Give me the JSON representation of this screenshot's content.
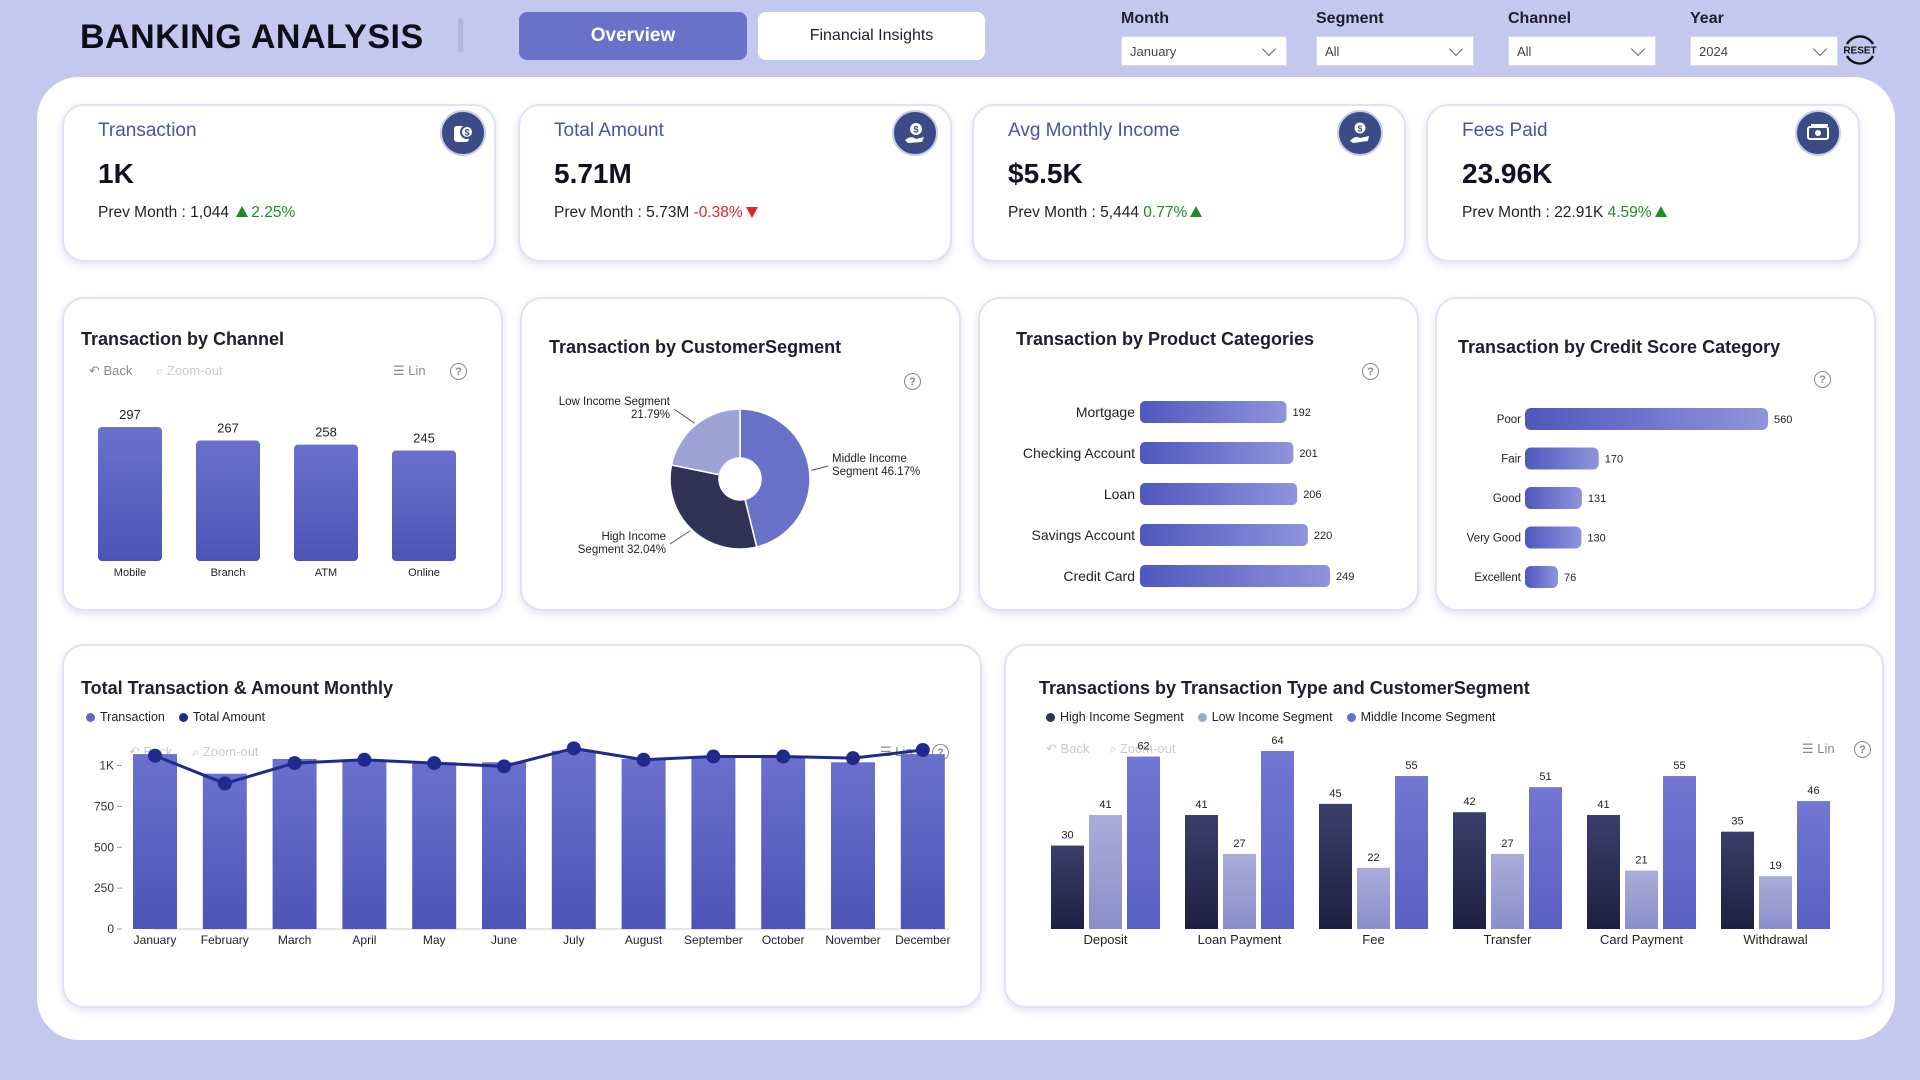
{
  "header": {
    "title": "BANKING ANALYSIS",
    "tabs": [
      {
        "label": "Overview",
        "active": true
      },
      {
        "label": "Financial Insights",
        "active": false
      }
    ],
    "filters": [
      {
        "label": "Month",
        "value": "January"
      },
      {
        "label": "Segment",
        "value": "All"
      },
      {
        "label": "Channel",
        "value": "All"
      },
      {
        "label": "Year",
        "value": "2024"
      }
    ],
    "reset_label": "RESET"
  },
  "kpis": [
    {
      "label": "Transaction",
      "value": "1K",
      "prev_label": "Prev Month : 1,044",
      "change": "2.25%",
      "direction": "up",
      "icon": "money-bag-icon"
    },
    {
      "label": "Total Amount",
      "value": "5.71M",
      "prev_label": "Prev Month : 5.73M",
      "change": "-0.38%",
      "direction": "down",
      "icon": "hand-coin-icon"
    },
    {
      "label": "Avg Monthly Income",
      "value": "$5.5K",
      "prev_label": "Prev Month : 5,444",
      "change": "0.77%",
      "direction": "up",
      "icon": "hand-income-icon"
    },
    {
      "label": "Fees Paid",
      "value": "23.96K",
      "prev_label": "Prev Month : 22.91K",
      "change": "4.59%",
      "direction": "up",
      "icon": "cash-icon"
    }
  ],
  "toolbar": {
    "back": "Back",
    "zoom_out": "Zoom-out",
    "lin": "Lin",
    "help": "?"
  },
  "colors": {
    "accent": "#6a71c9",
    "bar": "#5b61c4",
    "dark": "#2e3356",
    "light": "#9ea3d6",
    "line": "#1f2a8f",
    "up": "#1d8c26",
    "down": "#e0242a"
  },
  "chart_data": [
    {
      "id": "channel",
      "type": "bar",
      "title": "Transaction by Channel",
      "categories": [
        "Mobile",
        "Branch",
        "ATM",
        "Online"
      ],
      "values": [
        297,
        267,
        258,
        245
      ],
      "ylim": [
        0,
        297
      ]
    },
    {
      "id": "segment",
      "type": "pie",
      "title": "Transaction by CustomerSegment",
      "labels": [
        "Middle Income Segment",
        "High Income Segment",
        "Low Income Segment"
      ],
      "label_lines": [
        [
          "Middle Income",
          "Segment 46.17%"
        ],
        [
          "High Income",
          "Segment 32.04%"
        ],
        [
          "Low Income Segment",
          "21.79%"
        ]
      ],
      "values": [
        46.17,
        32.04,
        21.79
      ]
    },
    {
      "id": "product",
      "type": "bar",
      "title": "Transaction by Product Categories",
      "categories": [
        "Mortgage",
        "Checking Account",
        "Loan",
        "Savings Account",
        "Credit Card"
      ],
      "values": [
        192,
        201,
        206,
        220,
        249
      ],
      "orientation": "horizontal"
    },
    {
      "id": "credit",
      "type": "bar",
      "title": "Transaction by Credit Score Category",
      "categories": [
        "Poor",
        "Fair",
        "Good",
        "Very Good",
        "Excellent"
      ],
      "values": [
        560,
        170,
        131,
        130,
        76
      ],
      "orientation": "horizontal"
    },
    {
      "id": "monthly",
      "type": "bar",
      "title": "Total Transaction & Amount Monthly",
      "categories": [
        "January",
        "February",
        "March",
        "April",
        "May",
        "June",
        "July",
        "August",
        "September",
        "October",
        "November",
        "December"
      ],
      "series": [
        {
          "name": "Transaction",
          "type": "bar",
          "values": [
            1070,
            950,
            1040,
            1030,
            1020,
            1020,
            1090,
            1040,
            1050,
            1050,
            1020,
            1070
          ]
        },
        {
          "name": "Total Amount",
          "type": "line",
          "values": [
            1060,
            890,
            1015,
            1035,
            1015,
            995,
            1105,
            1035,
            1055,
            1055,
            1045,
            1095
          ]
        }
      ],
      "ylim": [
        0,
        1150
      ],
      "yticks": [
        0,
        250,
        500,
        750,
        1000
      ],
      "ytick_labels": [
        "0",
        "250",
        "500",
        "750",
        "1K"
      ]
    },
    {
      "id": "type_segment",
      "type": "bar",
      "title": "Transactions by Transaction Type and CustomerSegment",
      "categories": [
        "Deposit",
        "Loan Payment",
        "Fee",
        "Transfer",
        "Card Payment",
        "Withdrawal"
      ],
      "series": [
        {
          "name": "High Income Segment",
          "values": [
            30,
            41,
            45,
            42,
            41,
            35
          ]
        },
        {
          "name": "Low Income Segment",
          "values": [
            41,
            27,
            22,
            27,
            21,
            19
          ]
        },
        {
          "name": "Middle Income Segment",
          "values": [
            62,
            64,
            55,
            51,
            55,
            46
          ]
        }
      ],
      "ylim": [
        0,
        64
      ]
    }
  ]
}
